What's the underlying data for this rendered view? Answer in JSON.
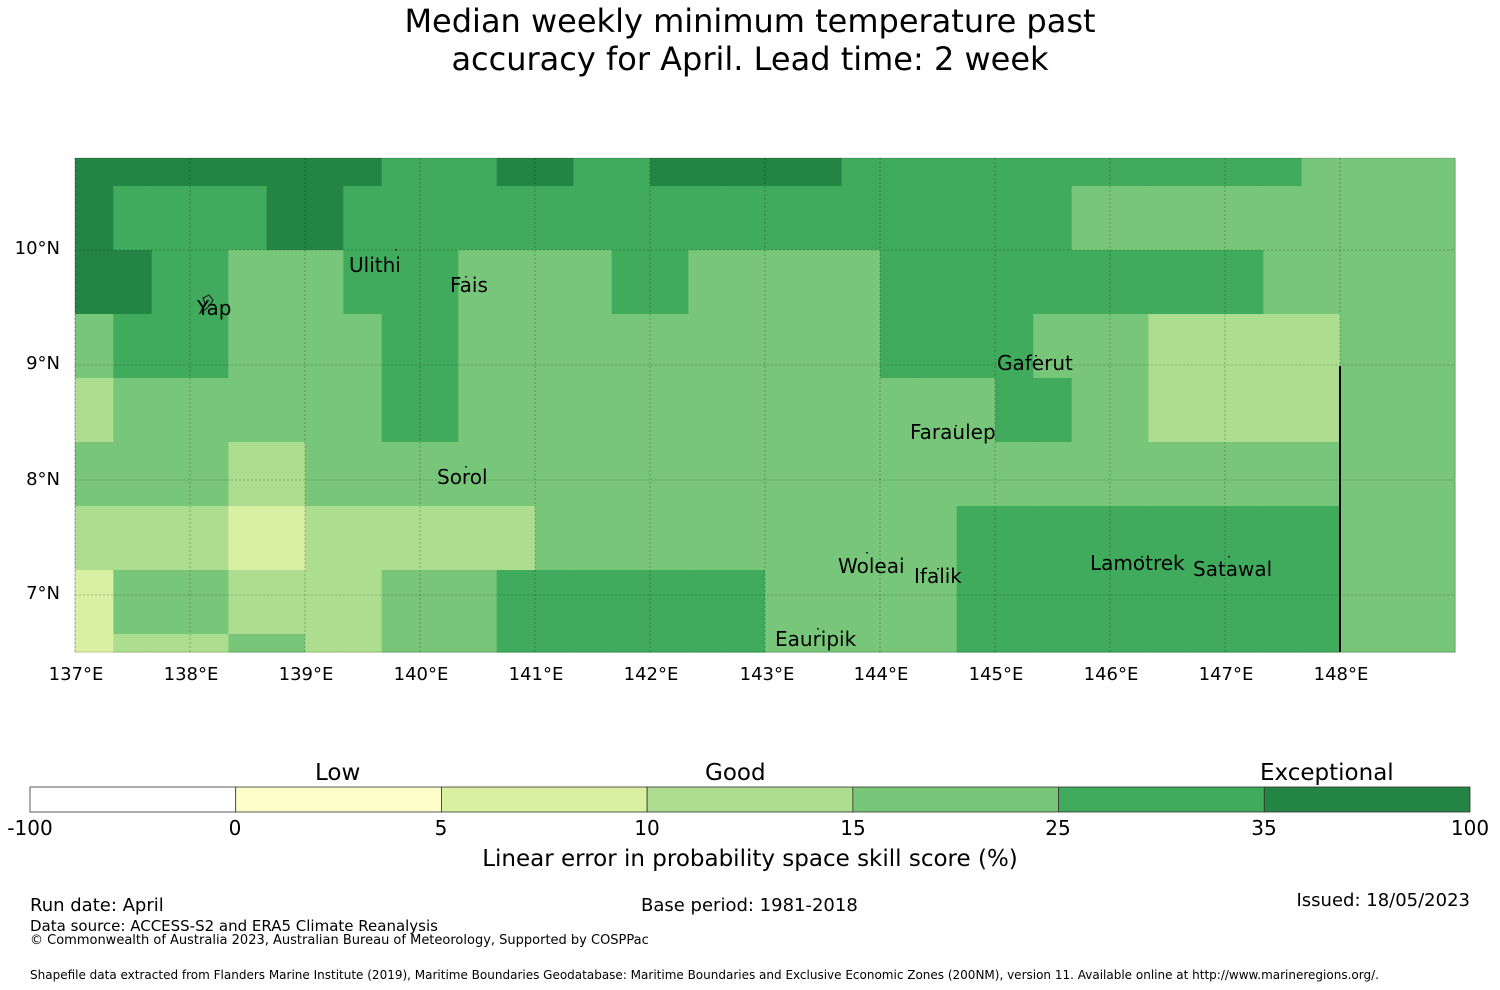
{
  "title_line1": "Median weekly minimum temperature past",
  "title_line2": "accuracy for April. Lead time: 2 week",
  "map": {
    "lat_labels": [
      "10°N",
      "9°N",
      "8°N",
      "7°N"
    ],
    "lon_labels": [
      "137°E",
      "138°E",
      "139°E",
      "140°E",
      "141°E",
      "142°E",
      "143°E",
      "144°E",
      "145°E",
      "146°E",
      "147°E",
      "148°E"
    ],
    "places": [
      "Ulithi",
      "Fais",
      "Yap",
      "Gaferut",
      "Faraulep",
      "Sorol",
      "Woleai",
      "Ifalik",
      "Lamotrek",
      "Satawal",
      "Eauripik"
    ],
    "category_colors": [
      "#ffffff",
      "#ffffcc",
      "#d9f0a3",
      "#addd8e",
      "#78c679",
      "#41ab5d",
      "#238443"
    ],
    "grid_categories": [
      [
        6,
        6,
        6,
        6,
        6,
        6,
        6,
        6,
        5,
        5,
        5,
        6,
        6,
        5,
        5,
        6,
        6,
        6,
        6,
        6,
        5,
        5,
        5,
        5,
        5,
        5,
        5,
        5,
        5,
        5,
        5,
        5,
        4,
        4,
        4
      ],
      [
        6,
        5,
        5,
        5,
        5,
        6,
        6,
        5,
        5,
        5,
        5,
        5,
        5,
        5,
        5,
        5,
        5,
        5,
        5,
        5,
        5,
        5,
        5,
        5,
        5,
        5,
        4,
        4,
        4,
        4,
        4,
        4,
        4,
        4,
        4
      ],
      [
        6,
        6,
        5,
        5,
        4,
        4,
        4,
        5,
        5,
        5,
        4,
        4,
        4,
        4,
        5,
        5,
        4,
        4,
        4,
        4,
        4,
        5,
        5,
        5,
        5,
        5,
        5,
        5,
        5,
        5,
        5,
        4,
        4,
        4,
        4
      ],
      [
        4,
        5,
        5,
        5,
        4,
        4,
        4,
        4,
        5,
        5,
        4,
        4,
        4,
        4,
        4,
        4,
        4,
        4,
        4,
        4,
        4,
        5,
        5,
        5,
        5,
        4,
        4,
        4,
        3,
        3,
        3,
        3,
        3,
        4,
        4
      ],
      [
        3,
        4,
        4,
        4,
        4,
        4,
        4,
        4,
        5,
        5,
        4,
        4,
        4,
        4,
        4,
        4,
        4,
        4,
        4,
        4,
        4,
        4,
        4,
        4,
        5,
        5,
        4,
        4,
        3,
        3,
        3,
        3,
        3,
        4,
        4
      ],
      [
        4,
        4,
        4,
        4,
        3,
        3,
        4,
        4,
        4,
        4,
        4,
        4,
        4,
        4,
        4,
        4,
        4,
        4,
        4,
        4,
        4,
        4,
        4,
        4,
        4,
        4,
        4,
        4,
        4,
        4,
        4,
        4,
        4,
        4,
        4
      ],
      [
        3,
        3,
        3,
        3,
        2,
        2,
        3,
        3,
        3,
        3,
        3,
        3,
        4,
        4,
        4,
        4,
        4,
        4,
        4,
        4,
        4,
        4,
        4,
        5,
        5,
        5,
        5,
        5,
        5,
        5,
        5,
        5,
        5,
        4,
        4
      ],
      [
        2,
        4,
        4,
        4,
        3,
        3,
        3,
        3,
        4,
        4,
        4,
        5,
        5,
        5,
        5,
        5,
        5,
        5,
        4,
        4,
        4,
        4,
        4,
        5,
        5,
        5,
        5,
        5,
        5,
        5,
        5,
        5,
        5,
        4,
        4
      ],
      [
        2,
        3,
        3,
        3,
        4,
        4,
        3,
        3,
        4,
        4,
        4,
        5,
        5,
        5,
        5,
        5,
        5,
        5,
        4,
        4,
        4,
        4,
        4,
        5,
        5,
        5,
        5,
        5,
        5,
        5,
        5,
        5,
        5,
        4,
        4
      ],
      [
        2,
        3,
        3,
        3,
        4,
        4,
        3,
        3,
        4,
        4,
        4,
        4,
        4,
        5,
        5,
        5,
        5,
        5,
        5,
        5,
        5,
        5,
        5,
        5,
        5,
        5,
        5,
        5,
        5,
        5,
        5,
        5,
        5,
        5,
        5
      ]
    ]
  },
  "colorbar": {
    "categories": [
      "Low",
      "Good",
      "Exceptional"
    ],
    "ticks": [
      "-100",
      "0",
      "5",
      "10",
      "15",
      "25",
      "35",
      "100"
    ],
    "colors": [
      "#ffffff",
      "#ffffcc",
      "#d9f0a3",
      "#addd8e",
      "#78c679",
      "#41ab5d",
      "#238443"
    ],
    "label": "Linear error in probability space skill score (%)"
  },
  "footer": {
    "run_date": "Run date: April",
    "base_period": "Base period: 1981-2018",
    "issued": "Issued: 18/05/2023",
    "data_source": "Data source: ACCESS-S2 and ERA5 Climate Reanalysis",
    "copyright": "© Commonwealth of Australia 2023, Australian Bureau of Meteorology, Supported by COSPPac",
    "shapefile": "Shapefile data extracted from Flanders Marine Institute (2019), Maritime Boundaries Geodatabase: Maritime Boundaries and Exclusive Economic Zones (200NM), version 11. Available online at http://www.marineregions.org/."
  }
}
